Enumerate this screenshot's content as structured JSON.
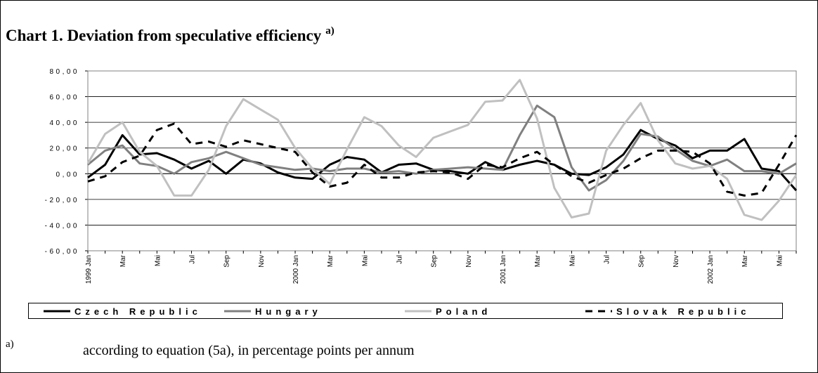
{
  "chart_data": {
    "type": "line",
    "title": "Chart 1. Deviation from speculative efficiency",
    "title_superscript": "a)",
    "footnote_marker": "a)",
    "footnote": "according to equation (5a), in percentage points per annum",
    "categories": [
      "1999 Jan",
      null,
      "Mar",
      null,
      "Mai",
      null,
      "Jul",
      null,
      "Sep",
      null,
      "Nov",
      null,
      "2000 Jan",
      null,
      "Mar",
      null,
      "Mai",
      null,
      "Jul",
      null,
      "Sep",
      null,
      "Nov",
      null,
      "2001 Jan",
      null,
      "Mar",
      null,
      "Mai",
      null,
      "Jul",
      null,
      "Sep",
      null,
      "Nov",
      null,
      "2002 Jan",
      null,
      "Mar",
      null,
      "Mai",
      null
    ],
    "series": [
      {
        "name": "Czech Republic",
        "color": "#000000",
        "dashed": false,
        "values": [
          -3,
          7,
          30,
          15,
          16,
          11,
          4,
          10,
          0,
          11,
          8,
          1,
          -3,
          -4,
          7,
          13,
          11,
          1,
          7,
          8,
          3,
          2,
          0,
          9,
          3,
          7,
          10,
          7,
          0,
          -1,
          5,
          15,
          34,
          27,
          22,
          12,
          18,
          18,
          27,
          4,
          2,
          -13
        ]
      },
      {
        "name": "Hungary",
        "color": "#808080",
        "dashed": false,
        "values": [
          7,
          18,
          22,
          8,
          6,
          0,
          9,
          12,
          17,
          12,
          7,
          5,
          3,
          4,
          2,
          4,
          4,
          1,
          2,
          0,
          3,
          4,
          5,
          4,
          3,
          30,
          53,
          44,
          5,
          -13,
          -5,
          10,
          31,
          29,
          19,
          10,
          6,
          11,
          2,
          2,
          0,
          8
        ]
      },
      {
        "name": "Poland",
        "color": "#c0c0c0",
        "dashed": false,
        "values": [
          8,
          31,
          40,
          17,
          6,
          -17,
          -17,
          3,
          37,
          58,
          50,
          42,
          20,
          4,
          -8,
          19,
          44,
          37,
          22,
          13,
          28,
          33,
          38,
          56,
          57,
          73,
          43,
          -11,
          -34,
          -31,
          18,
          38,
          55,
          26,
          8,
          4,
          6,
          -4,
          -32,
          -36,
          -21,
          -1
        ]
      },
      {
        "name": "Slovak Republic",
        "color": "#000000",
        "dashed": true,
        "values": [
          -6,
          -2,
          9,
          14,
          34,
          39,
          23,
          25,
          21,
          26,
          23,
          20,
          17,
          1,
          -10,
          -7,
          7,
          -3,
          -3,
          1,
          2,
          1,
          -4,
          7,
          5,
          12,
          17,
          7,
          -2,
          -7,
          -1,
          4,
          12,
          18,
          18,
          17,
          8,
          -14,
          -17,
          -15,
          7,
          30
        ]
      }
    ],
    "ylim": [
      -60,
      80
    ],
    "yticks": [
      {
        "value": -60,
        "label": "-60,00"
      },
      {
        "value": -40,
        "label": "-40,00"
      },
      {
        "value": -20,
        "label": "-20,00"
      },
      {
        "value": 0,
        "label": "0,00"
      },
      {
        "value": 20,
        "label": "20,00"
      },
      {
        "value": 40,
        "label": "40,00"
      },
      {
        "value": 60,
        "label": "60,00"
      },
      {
        "value": 80,
        "label": "80,00"
      }
    ],
    "grid": true
  }
}
